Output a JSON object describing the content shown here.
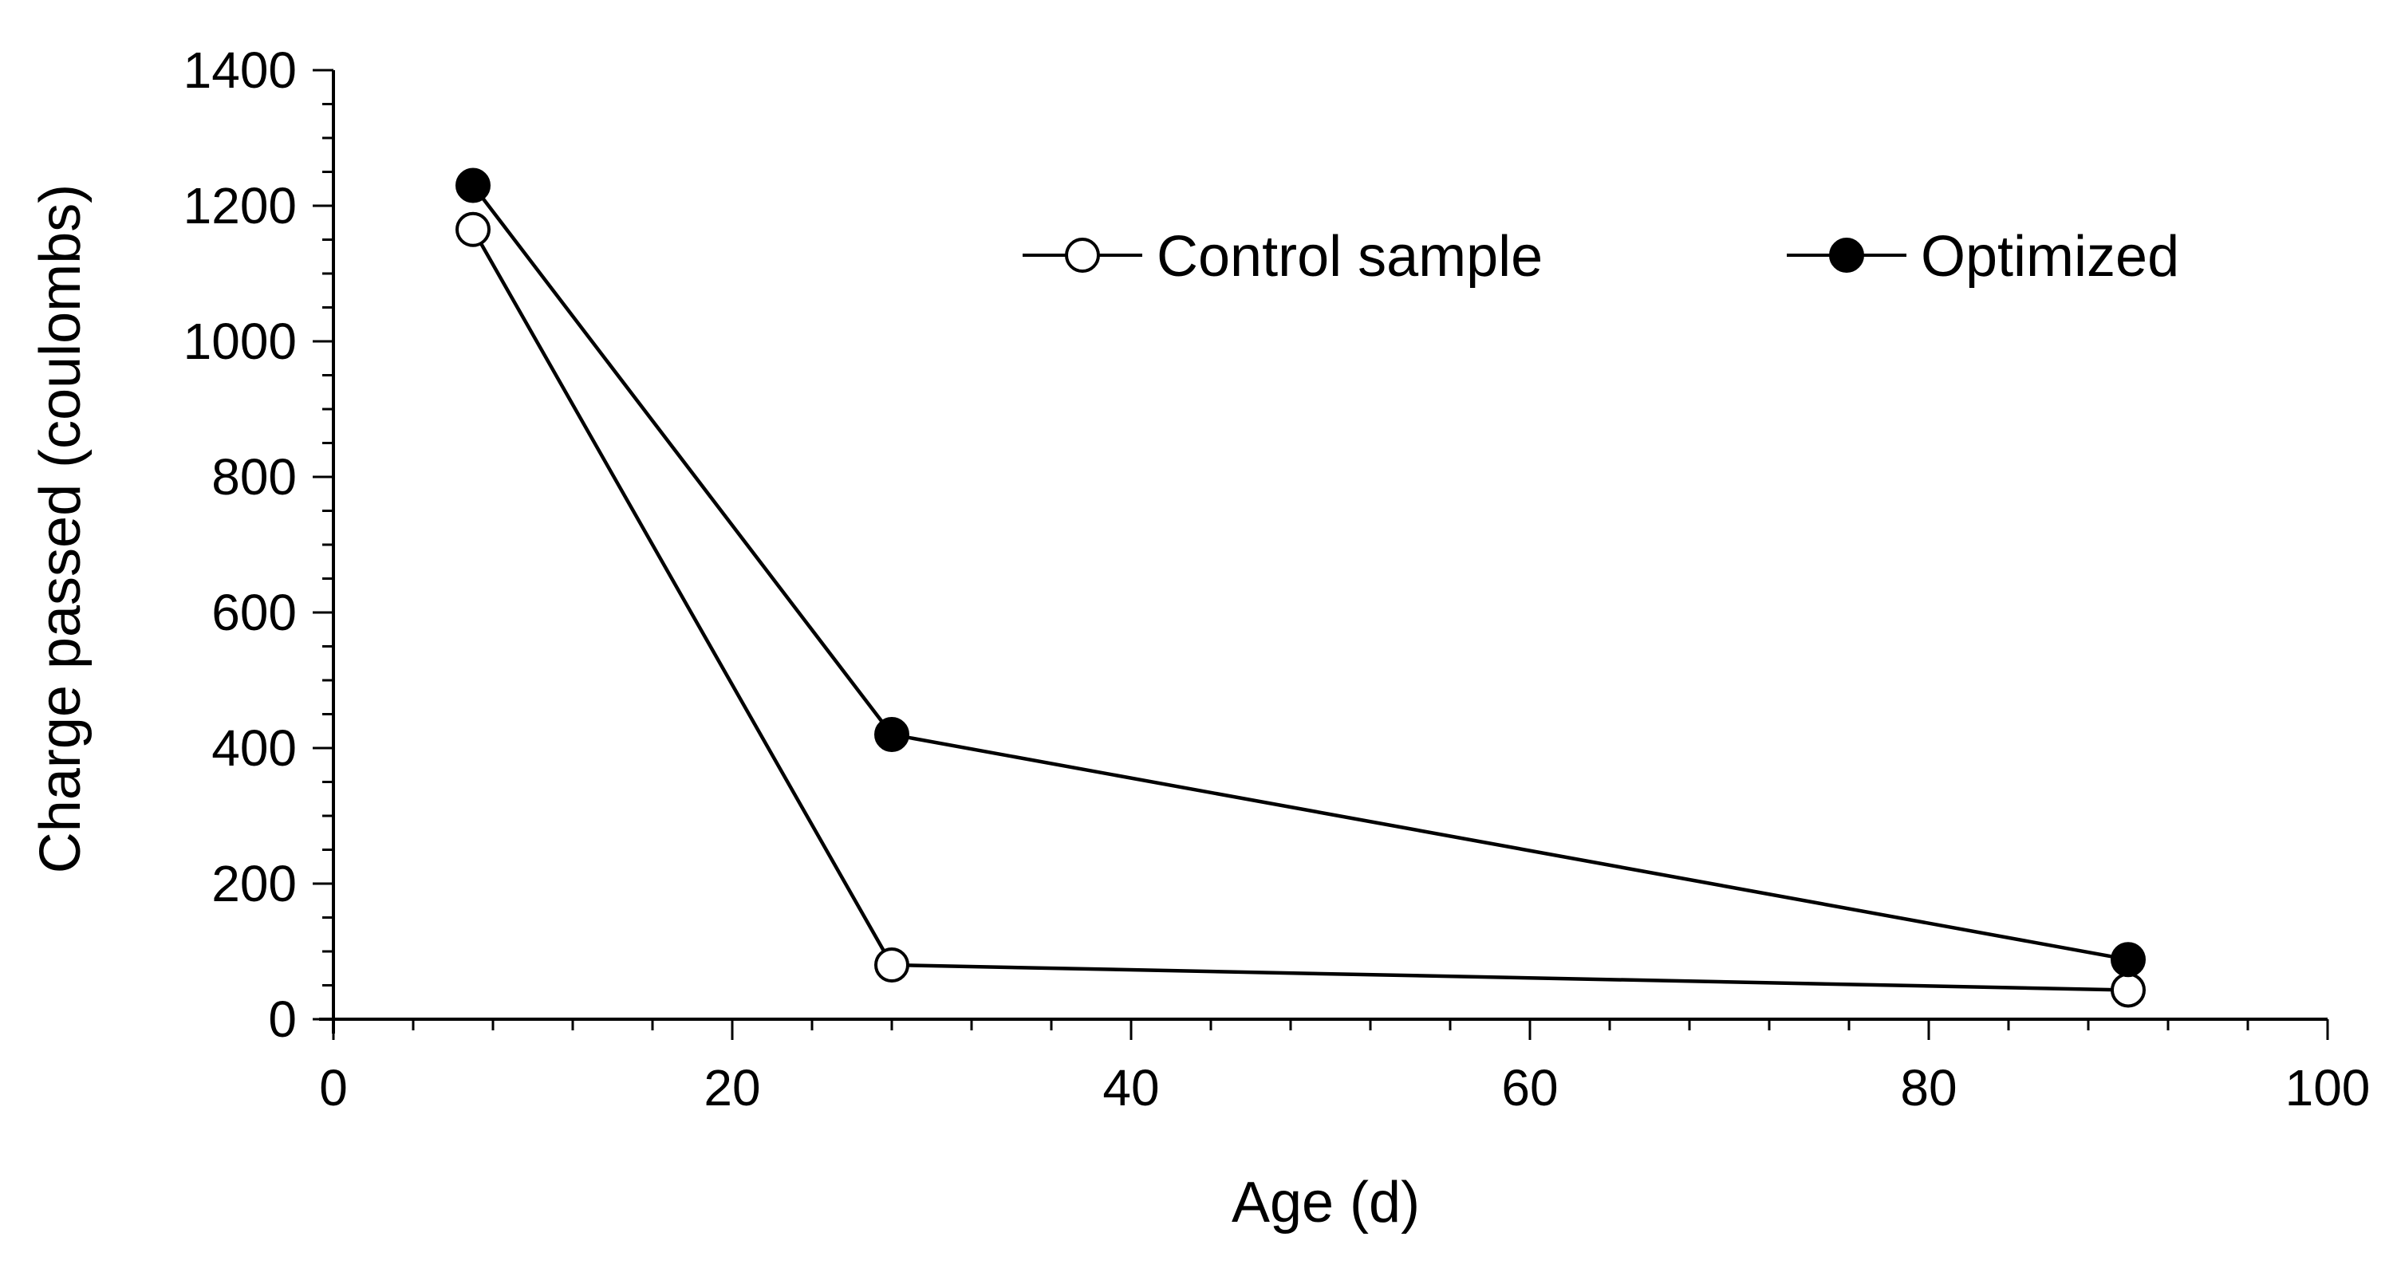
{
  "chart_data": {
    "type": "line",
    "title": "",
    "xlabel": "Age (d)",
    "ylabel": "Charge passed (coulombs)",
    "xlim": [
      0,
      100
    ],
    "ylim": [
      0,
      1400
    ],
    "xticks": [
      "0",
      "20",
      "40",
      "60",
      "80",
      "100"
    ],
    "yticks": [
      "0",
      "200",
      "400",
      "600",
      "800",
      "1000",
      "1200",
      "1400"
    ],
    "x_minor_step": 4,
    "y_minor_step": 50,
    "grid": false,
    "legend_position": "top-right",
    "series": [
      {
        "name": "Control sample",
        "marker": "open-circle",
        "color": "#000000",
        "x": [
          7,
          28,
          90
        ],
        "y": [
          1165,
          80,
          43
        ]
      },
      {
        "name": "Optimized",
        "marker": "filled-circle",
        "color": "#000000",
        "x": [
          7,
          28,
          90
        ],
        "y": [
          1230,
          420,
          88
        ]
      }
    ]
  }
}
